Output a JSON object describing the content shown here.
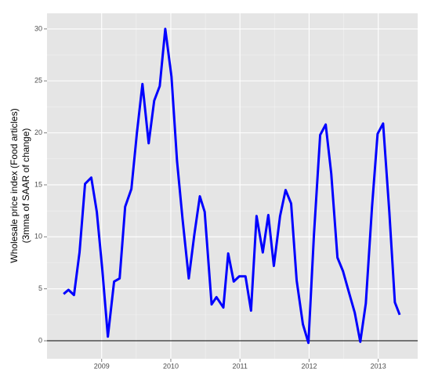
{
  "chart_data": {
    "type": "line",
    "y_label_lines": [
      "Wholesale price index (Food articles)",
      "(3mma of SAAR of change)"
    ],
    "x": [
      2008.45,
      2008.52,
      2008.6,
      2008.68,
      2008.76,
      2008.85,
      2008.93,
      2009.01,
      2009.09,
      2009.18,
      2009.26,
      2009.34,
      2009.43,
      2009.51,
      2009.59,
      2009.68,
      2009.76,
      2009.84,
      2009.92,
      2010.01,
      2010.09,
      2010.17,
      2010.26,
      2010.34,
      2010.42,
      2010.49,
      2010.59,
      2010.66,
      2010.76,
      2010.83,
      2010.91,
      2010.99,
      2011.08,
      2011.16,
      2011.24,
      2011.33,
      2011.41,
      2011.49,
      2011.58,
      2011.66,
      2011.74,
      2011.82,
      2011.91,
      2011.99,
      2012.07,
      2012.16,
      2012.24,
      2012.32,
      2012.41,
      2012.49,
      2012.57,
      2012.66,
      2012.74,
      2012.82,
      2012.91,
      2012.99,
      2013.07,
      2013.16,
      2013.24,
      2013.31
    ],
    "series": [
      {
        "color": "#0000ff",
        "values": [
          4.5,
          4.9,
          4.4,
          8.5,
          15.1,
          15.7,
          12.4,
          6.8,
          0.4,
          5.7,
          6.0,
          12.9,
          14.6,
          20.0,
          24.7,
          19.0,
          23.1,
          24.5,
          30.0,
          25.4,
          17.3,
          11.7,
          6.0,
          10.2,
          13.9,
          12.4,
          3.5,
          4.2,
          3.2,
          8.4,
          5.7,
          6.2,
          6.2,
          2.9,
          12.0,
          8.5,
          12.1,
          7.2,
          12.0,
          14.5,
          13.2,
          5.8,
          1.6,
          -0.2,
          10.2,
          19.8,
          20.8,
          16.1,
          8.0,
          6.7,
          4.8,
          2.7,
          -0.1,
          3.6,
          12.9,
          19.9,
          20.9,
          12.4,
          3.7,
          2.5
        ]
      }
    ],
    "hline": 0,
    "xlim": [
      2008.21,
      2013.57
    ],
    "xticks": [
      2009,
      2010,
      2011,
      2012,
      2013
    ],
    "ylim": [
      -1.73,
      31.5
    ],
    "yticks": [
      0,
      5,
      10,
      15,
      20,
      25,
      30
    ],
    "grid": true
  }
}
